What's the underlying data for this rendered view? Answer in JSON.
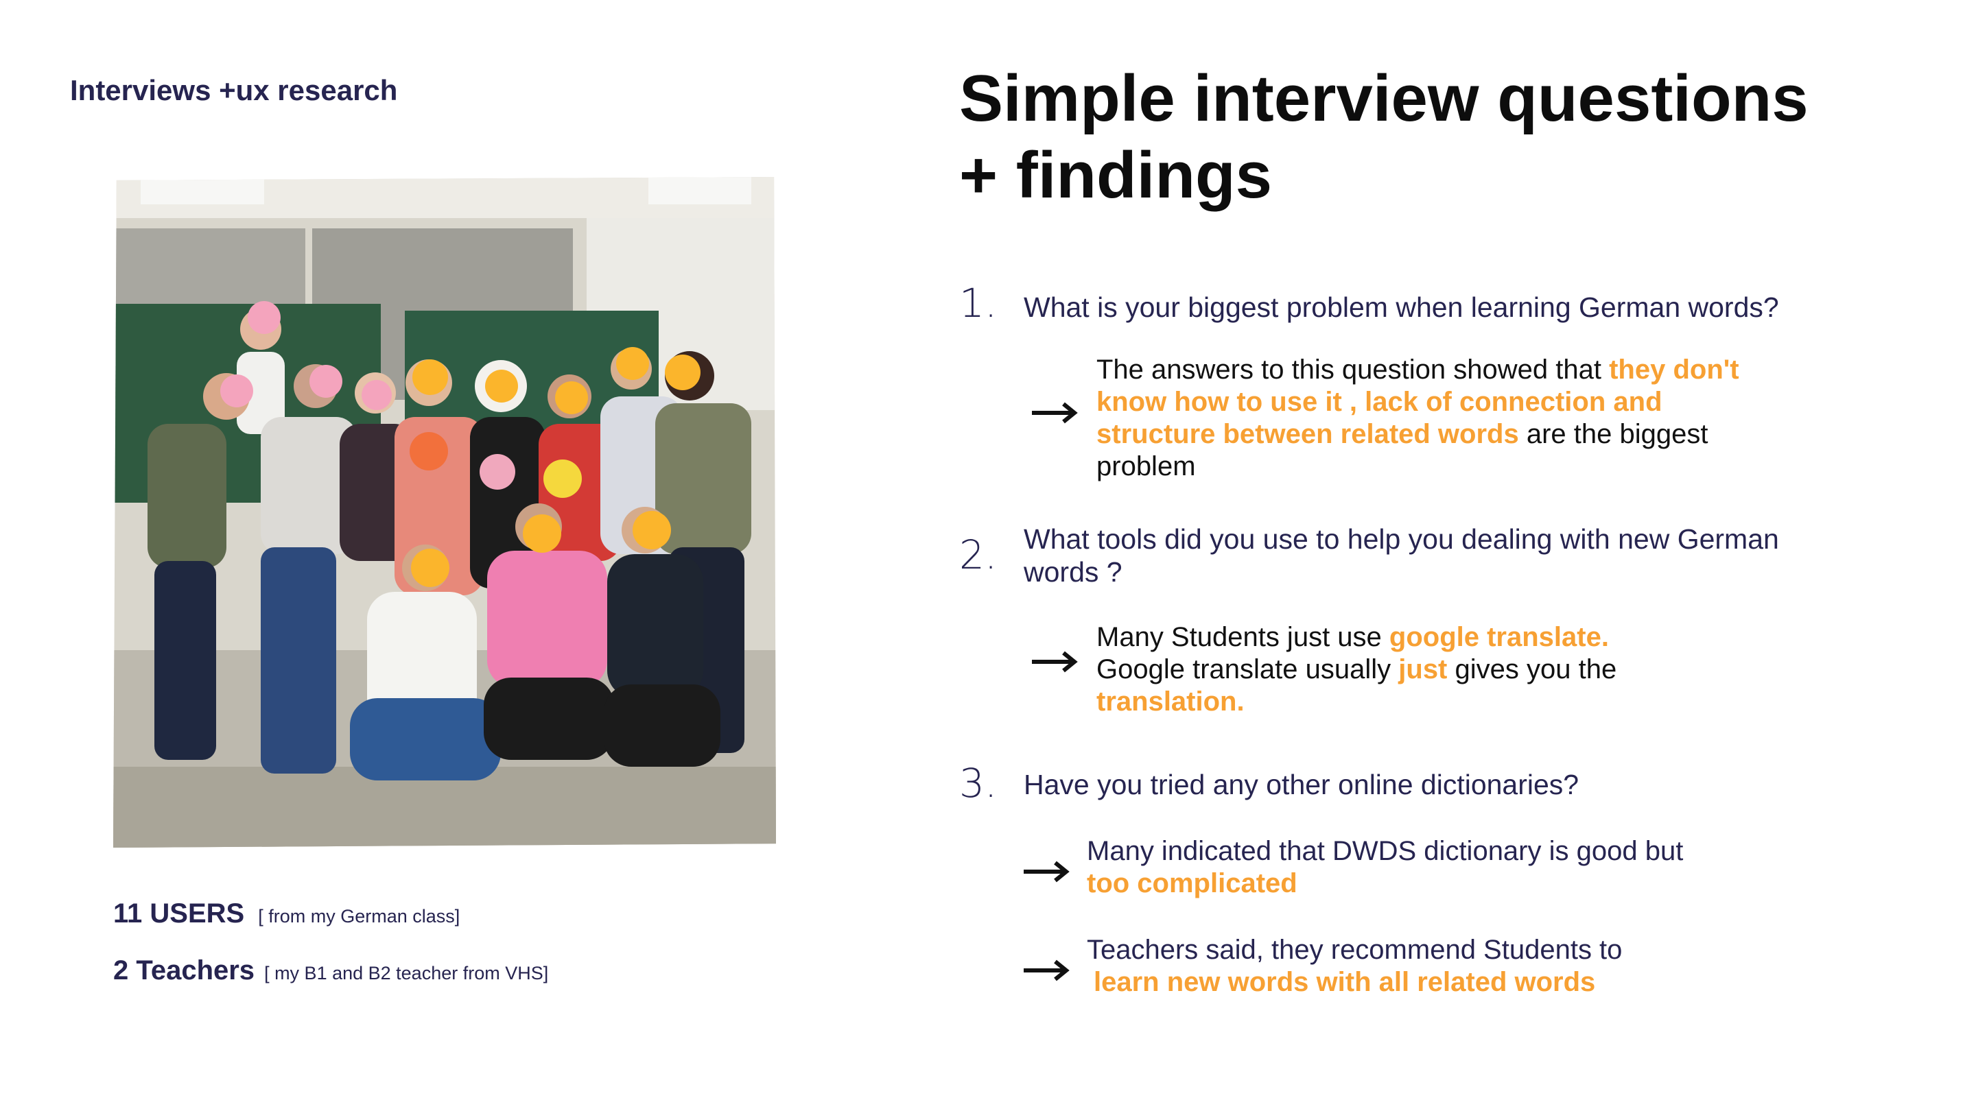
{
  "section_label": "Interviews +ux research",
  "title_line1": "Simple interview questions",
  "title_line2": "+ findings",
  "photo": {
    "alt": "Group photo of German class students and teachers with faces covered by emoji stickers"
  },
  "stats": [
    {
      "label": "11 USERS",
      "note": "[ from my German class]"
    },
    {
      "label": "2 Teachers",
      "note": "[ my B1 and B2 teacher from VHS]"
    }
  ],
  "questions": [
    {
      "number": "1.",
      "text": "What is your biggest problem when learning German words?",
      "answers": [
        {
          "parts": [
            {
              "text": "The answers to this question showed that  "
            },
            {
              "text": "they don't",
              "highlight": true
            },
            {
              "text": " know how to use it , lack of connection and structure between related words",
              "highlight": true
            },
            {
              "text": "  are the biggest problem"
            }
          ]
        }
      ]
    },
    {
      "number": "2.",
      "text": "What tools did you use to help you dealing with new German words ?",
      "answers": [
        {
          "parts": [
            {
              "text": "Many Students just use "
            },
            {
              "text": "google translate.",
              "highlight": true
            },
            {
              "text": "Google translate usually "
            },
            {
              "text": "just",
              "highlight": true
            },
            {
              "text": " gives you the "
            },
            {
              "text": "translation.",
              "highlight": true
            }
          ]
        }
      ]
    },
    {
      "number": "3.",
      "text": "Have you tried any other online dictionaries?",
      "answers": [
        {
          "parts": [
            {
              "text": "Many indicated that DWDS dictionary is good but "
            },
            {
              "text": "too complicated",
              "highlight": true
            }
          ]
        },
        {
          "parts": [
            {
              "text": "Teachers said, they recommend Students to"
            },
            {
              "text": "learn new words with all related words",
              "highlight": true
            }
          ]
        }
      ]
    }
  ],
  "colors": {
    "navy": "#262450",
    "accent": "#f7a033",
    "title": "#0d0d0d"
  },
  "icons": {
    "arrow": "arrow-right-icon"
  }
}
